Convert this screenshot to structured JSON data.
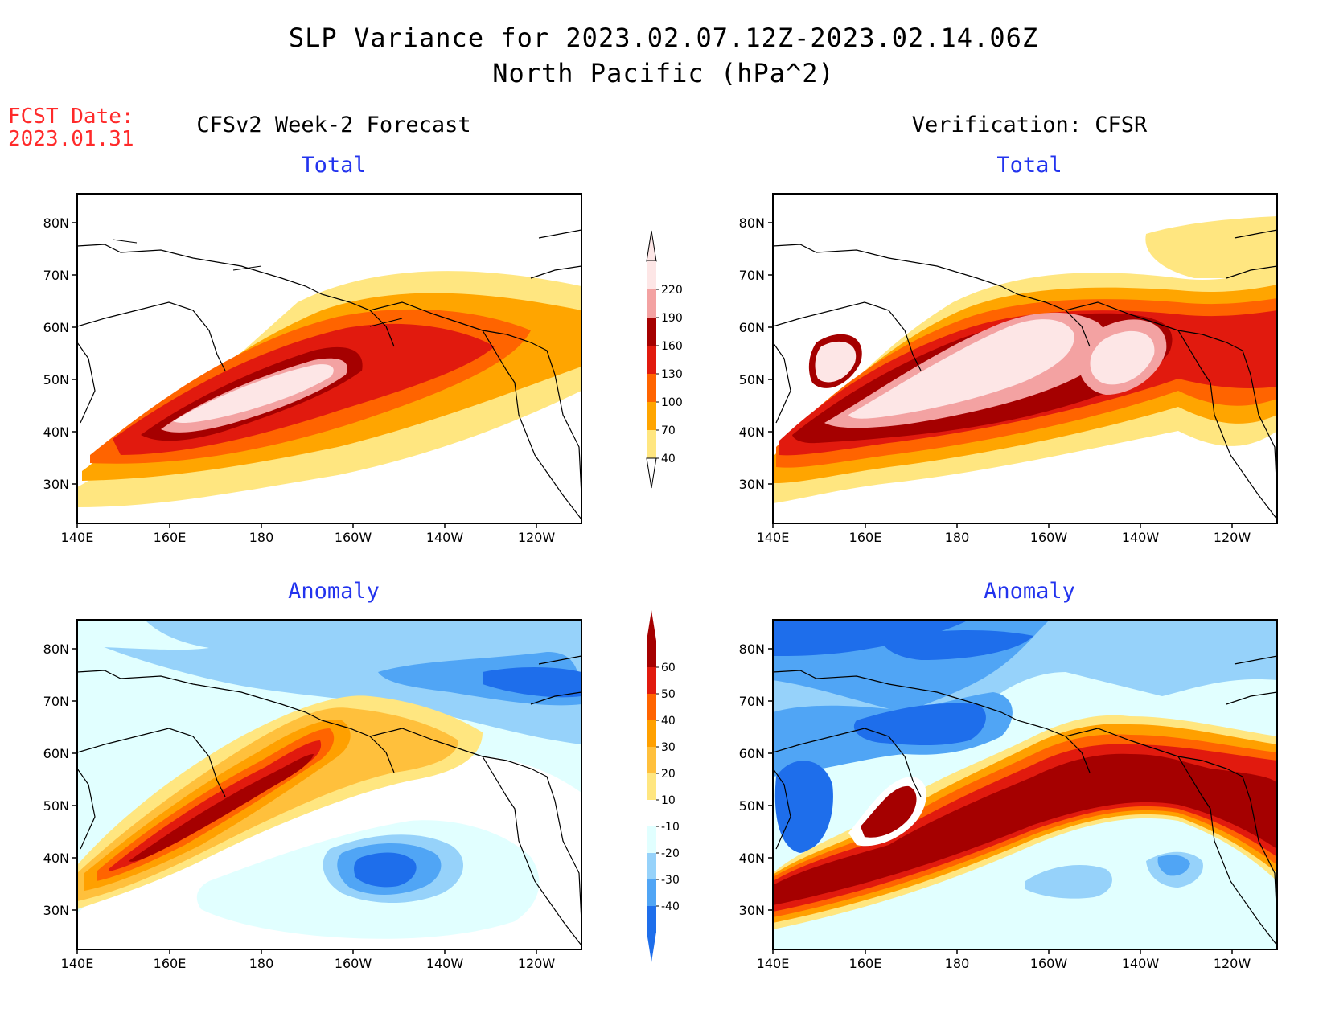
{
  "header": {
    "title_line1": "SLP Variance for 2023.02.07.12Z-2023.02.14.06Z",
    "title_line2": "North Pacific (hPa^2)",
    "fcst_label": "FCST Date:",
    "fcst_date": "2023.01.31"
  },
  "columns": {
    "left": "CFSv2 Week-2 Forecast",
    "right": "Verification: CFSR"
  },
  "panels": {
    "forecast_total": "Total",
    "verif_total": "Total",
    "forecast_anomaly": "Anomaly",
    "verif_anomaly": "Anomaly"
  },
  "axes": {
    "lat_labels": [
      "30N",
      "40N",
      "50N",
      "60N",
      "70N",
      "80N"
    ],
    "lon_labels": [
      "140E",
      "160E",
      "180",
      "160W",
      "140W",
      "120W"
    ]
  },
  "colorbar_total": {
    "labels": [
      "40",
      "70",
      "100",
      "130",
      "160",
      "190",
      "220"
    ],
    "colors": [
      "#ffe680",
      "#ffa500",
      "#ff6400",
      "#e11a0e",
      "#a50000",
      "#f3a2a2",
      "#fde6e6"
    ]
  },
  "colorbar_anomaly": {
    "labels": [
      "-40",
      "-30",
      "-20",
      "-10",
      "10",
      "20",
      "30",
      "40",
      "50",
      "60"
    ],
    "colors": [
      "#1e6eeb",
      "#50a5f5",
      "#96d2fa",
      "#e1ffff",
      "#ffffff",
      "#ffe680",
      "#ffc03c",
      "#ffa000",
      "#ff6400",
      "#e11a0e",
      "#a50000"
    ]
  }
}
